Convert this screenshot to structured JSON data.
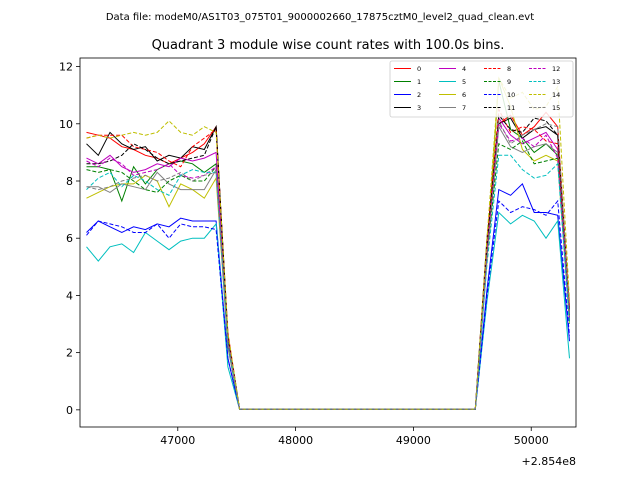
{
  "figure": {
    "suptitle": "Data file: modeM0/AS1T03_075T01_9000002660_17875cztM0_level2_quad_clean.evt",
    "axis_offset_label": "+2.854e8"
  },
  "chart_data": {
    "type": "line",
    "title": "Quadrant 3 module wise count rates with 100.0s bins.",
    "xlabel": "",
    "ylabel": "",
    "x_offset": 285400000,
    "xlim": [
      46170,
      50380
    ],
    "ylim": [
      -0.6,
      12.3
    ],
    "xticks": [
      47000,
      48000,
      49000,
      50000
    ],
    "xtick_labels": [
      "47000",
      "48000",
      "49000",
      "50000"
    ],
    "yticks": [
      0,
      2,
      4,
      6,
      8,
      10,
      12
    ],
    "ytick_labels": [
      "0",
      "2",
      "4",
      "6",
      "8",
      "10",
      "12"
    ],
    "grid": false,
    "legend_position": "top-right",
    "x": [
      46225,
      46325,
      46425,
      46525,
      46625,
      46725,
      46825,
      46925,
      47025,
      47125,
      47225,
      47325,
      47425,
      47525,
      47625,
      47725,
      47825,
      47925,
      48025,
      48125,
      48225,
      48325,
      48425,
      48525,
      48625,
      48725,
      48825,
      48925,
      49025,
      49125,
      49225,
      49325,
      49425,
      49525,
      49625,
      49725,
      49825,
      49925,
      50025,
      50125,
      50225,
      50325
    ],
    "series": [
      {
        "name": "0",
        "color": "#ff0000",
        "dash": "solid",
        "values": [
          9.7,
          9.6,
          9.5,
          9.2,
          9.1,
          8.9,
          8.8,
          8.6,
          8.8,
          9.0,
          9.3,
          9.9,
          2.5,
          0.02,
          0.02,
          0.02,
          0.02,
          0.02,
          0.02,
          0.02,
          0.02,
          0.02,
          0.02,
          0.02,
          0.02,
          0.02,
          0.02,
          0.02,
          0.02,
          0.02,
          0.02,
          0.02,
          0.02,
          0.02,
          5.8,
          10.0,
          10.3,
          9.6,
          9.9,
          10.4,
          9.9,
          3.5
        ]
      },
      {
        "name": "1",
        "color": "#008000",
        "dash": "solid",
        "values": [
          8.5,
          8.5,
          8.4,
          7.3,
          8.5,
          7.9,
          8.4,
          8.6,
          8.7,
          8.6,
          8.3,
          8.6,
          2.3,
          0.02,
          0.02,
          0.02,
          0.02,
          0.02,
          0.02,
          0.02,
          0.02,
          0.02,
          0.02,
          0.02,
          0.02,
          0.02,
          0.02,
          0.02,
          0.02,
          0.02,
          0.02,
          0.02,
          0.02,
          0.02,
          5.5,
          11.5,
          9.8,
          9.5,
          9.0,
          9.3,
          8.9,
          3.3
        ]
      },
      {
        "name": "2",
        "color": "#0000ff",
        "dash": "solid",
        "values": [
          6.2,
          6.6,
          6.4,
          6.2,
          6.4,
          6.3,
          6.5,
          6.4,
          6.7,
          6.6,
          6.6,
          6.6,
          1.8,
          0.02,
          0.02,
          0.02,
          0.02,
          0.02,
          0.02,
          0.02,
          0.02,
          0.02,
          0.02,
          0.02,
          0.02,
          0.02,
          0.02,
          0.02,
          0.02,
          0.02,
          0.02,
          0.02,
          0.02,
          0.02,
          4.2,
          7.7,
          7.5,
          7.9,
          6.9,
          6.9,
          6.8,
          2.4
        ]
      },
      {
        "name": "3",
        "color": "#000000",
        "dash": "solid",
        "values": [
          9.3,
          8.9,
          9.7,
          9.3,
          9.1,
          9.2,
          8.7,
          8.9,
          8.8,
          9.2,
          9.1,
          9.9,
          2.6,
          0.02,
          0.02,
          0.02,
          0.02,
          0.02,
          0.02,
          0.02,
          0.02,
          0.02,
          0.02,
          0.02,
          0.02,
          0.02,
          0.02,
          0.02,
          0.02,
          0.02,
          0.02,
          0.02,
          0.02,
          0.02,
          6.0,
          10.0,
          10.2,
          9.5,
          9.8,
          9.9,
          9.6,
          3.4
        ]
      },
      {
        "name": "4",
        "color": "#bf00bf",
        "dash": "solid",
        "values": [
          8.8,
          8.6,
          8.9,
          8.5,
          8.3,
          8.4,
          8.6,
          8.5,
          8.8,
          8.7,
          8.8,
          9.0,
          2.4,
          0.02,
          0.02,
          0.02,
          0.02,
          0.02,
          0.02,
          0.02,
          0.02,
          0.02,
          0.02,
          0.02,
          0.02,
          0.02,
          0.02,
          0.02,
          0.02,
          0.02,
          0.02,
          0.02,
          0.02,
          0.02,
          5.6,
          10.2,
          9.6,
          9.3,
          9.5,
          9.7,
          9.1,
          3.2
        ]
      },
      {
        "name": "5",
        "color": "#00bfbf",
        "dash": "solid",
        "values": [
          5.7,
          5.2,
          5.7,
          5.8,
          5.5,
          6.2,
          5.9,
          5.6,
          5.9,
          6.0,
          6.0,
          6.5,
          1.5,
          0.02,
          0.02,
          0.02,
          0.02,
          0.02,
          0.02,
          0.02,
          0.02,
          0.02,
          0.02,
          0.02,
          0.02,
          0.02,
          0.02,
          0.02,
          0.02,
          0.02,
          0.02,
          0.02,
          0.02,
          0.02,
          3.8,
          6.9,
          6.5,
          6.8,
          6.6,
          6.0,
          6.6,
          1.8
        ]
      },
      {
        "name": "6",
        "color": "#bfbf00",
        "dash": "solid",
        "values": [
          7.4,
          7.6,
          7.8,
          7.9,
          7.9,
          8.2,
          8.0,
          7.1,
          7.9,
          7.7,
          7.4,
          8.1,
          2.2,
          0.02,
          0.02,
          0.02,
          0.02,
          0.02,
          0.02,
          0.02,
          0.02,
          0.02,
          0.02,
          0.02,
          0.02,
          0.02,
          0.02,
          0.02,
          0.02,
          0.02,
          0.02,
          0.02,
          0.02,
          0.02,
          5.2,
          11.6,
          10.6,
          9.1,
          8.7,
          8.9,
          8.7,
          3.0
        ]
      },
      {
        "name": "7",
        "color": "#808080",
        "dash": "solid",
        "values": [
          7.8,
          7.8,
          7.6,
          7.9,
          7.8,
          7.7,
          8.3,
          7.9,
          7.7,
          7.7,
          7.7,
          8.4,
          2.2,
          0.02,
          0.02,
          0.02,
          0.02,
          0.02,
          0.02,
          0.02,
          0.02,
          0.02,
          0.02,
          0.02,
          0.02,
          0.02,
          0.02,
          0.02,
          0.02,
          0.02,
          0.02,
          0.02,
          0.02,
          0.02,
          5.3,
          9.9,
          9.2,
          9.0,
          9.2,
          9.3,
          9.0,
          3.1
        ]
      },
      {
        "name": "8",
        "color": "#ff0000",
        "dash": "dashed",
        "values": [
          9.5,
          9.6,
          9.6,
          9.6,
          9.2,
          9.1,
          9.0,
          8.7,
          8.5,
          9.2,
          9.5,
          9.8,
          2.7,
          0.02,
          0.02,
          0.02,
          0.02,
          0.02,
          0.02,
          0.02,
          0.02,
          0.02,
          0.02,
          0.02,
          0.02,
          0.02,
          0.02,
          0.02,
          0.02,
          0.02,
          0.02,
          0.02,
          0.02,
          0.02,
          5.9,
          10.5,
          9.7,
          9.9,
          9.8,
          9.4,
          9.3,
          3.6
        ]
      },
      {
        "name": "9",
        "color": "#008000",
        "dash": "dashed",
        "values": [
          8.4,
          8.3,
          8.4,
          8.3,
          8.0,
          7.7,
          7.6,
          8.0,
          8.2,
          8.0,
          8.0,
          8.5,
          2.3,
          0.02,
          0.02,
          0.02,
          0.02,
          0.02,
          0.02,
          0.02,
          0.02,
          0.02,
          0.02,
          0.02,
          0.02,
          0.02,
          0.02,
          0.02,
          0.02,
          0.02,
          0.02,
          0.02,
          0.02,
          0.02,
          5.4,
          9.3,
          9.1,
          9.4,
          8.6,
          8.7,
          8.8,
          3.1
        ]
      },
      {
        "name": "10",
        "color": "#0000ff",
        "dash": "dashed",
        "values": [
          6.1,
          6.6,
          6.5,
          6.4,
          6.2,
          6.2,
          6.5,
          6.0,
          6.5,
          6.4,
          6.4,
          6.3,
          1.8,
          0.02,
          0.02,
          0.02,
          0.02,
          0.02,
          0.02,
          0.02,
          0.02,
          0.02,
          0.02,
          0.02,
          0.02,
          0.02,
          0.02,
          0.02,
          0.02,
          0.02,
          0.02,
          0.02,
          0.02,
          0.02,
          4.0,
          7.3,
          6.9,
          7.1,
          7.0,
          6.8,
          7.3,
          2.6
        ]
      },
      {
        "name": "11",
        "color": "#000000",
        "dash": "dashed",
        "values": [
          8.6,
          8.6,
          8.7,
          8.9,
          9.3,
          9.1,
          8.8,
          8.6,
          8.7,
          8.8,
          8.9,
          9.9,
          2.5,
          0.02,
          0.02,
          0.02,
          0.02,
          0.02,
          0.02,
          0.02,
          0.02,
          0.02,
          0.02,
          0.02,
          0.02,
          0.02,
          0.02,
          0.02,
          0.02,
          0.02,
          0.02,
          0.02,
          0.02,
          0.02,
          5.7,
          10.3,
          9.8,
          9.7,
          10.2,
          10.1,
          9.6,
          3.5
        ]
      },
      {
        "name": "12",
        "color": "#bf00bf",
        "dash": "dashed",
        "values": [
          8.7,
          8.5,
          8.8,
          8.6,
          8.2,
          8.3,
          8.4,
          8.6,
          8.2,
          8.1,
          8.2,
          8.5,
          2.4,
          0.02,
          0.02,
          0.02,
          0.02,
          0.02,
          0.02,
          0.02,
          0.02,
          0.02,
          0.02,
          0.02,
          0.02,
          0.02,
          0.02,
          0.02,
          0.02,
          0.02,
          0.02,
          0.02,
          0.02,
          0.02,
          5.5,
          10.0,
          9.4,
          9.5,
          9.2,
          9.6,
          8.8,
          3.2
        ]
      },
      {
        "name": "13",
        "color": "#00bfbf",
        "dash": "dashed",
        "values": [
          7.7,
          8.1,
          8.3,
          7.8,
          8.2,
          8.0,
          7.7,
          7.5,
          8.2,
          8.4,
          8.3,
          8.3,
          2.3,
          0.02,
          0.02,
          0.02,
          0.02,
          0.02,
          0.02,
          0.02,
          0.02,
          0.02,
          0.02,
          0.02,
          0.02,
          0.02,
          0.02,
          0.02,
          0.02,
          0.02,
          0.02,
          0.02,
          0.02,
          0.02,
          5.1,
          8.9,
          8.9,
          8.4,
          8.1,
          8.2,
          8.6,
          3.0
        ]
      },
      {
        "name": "14",
        "color": "#bfbf00",
        "dash": "dashed",
        "values": [
          9.5,
          9.6,
          9.5,
          9.6,
          9.7,
          9.6,
          9.7,
          10.1,
          9.7,
          9.6,
          9.9,
          9.7,
          2.7,
          0.02,
          0.02,
          0.02,
          0.02,
          0.02,
          0.02,
          0.02,
          0.02,
          0.02,
          0.02,
          0.02,
          0.02,
          0.02,
          0.02,
          0.02,
          0.02,
          0.02,
          0.02,
          0.02,
          0.02,
          0.02,
          6.0,
          11.6,
          10.9,
          11.1,
          10.5,
          10.6,
          11.3,
          3.8
        ]
      },
      {
        "name": "15",
        "color": "#808080",
        "dash": "dashed",
        "values": [
          7.8,
          7.7,
          7.8,
          8.0,
          8.1,
          8.2,
          8.0,
          8.1,
          8.3,
          8.0,
          8.2,
          8.3,
          2.3,
          0.02,
          0.02,
          0.02,
          0.02,
          0.02,
          0.02,
          0.02,
          0.02,
          0.02,
          0.02,
          0.02,
          0.02,
          0.02,
          0.02,
          0.02,
          0.02,
          0.02,
          0.02,
          0.02,
          0.02,
          0.02,
          5.3,
          10.1,
          9.3,
          9.6,
          9.8,
          10.0,
          9.9,
          3.4
        ]
      }
    ]
  }
}
